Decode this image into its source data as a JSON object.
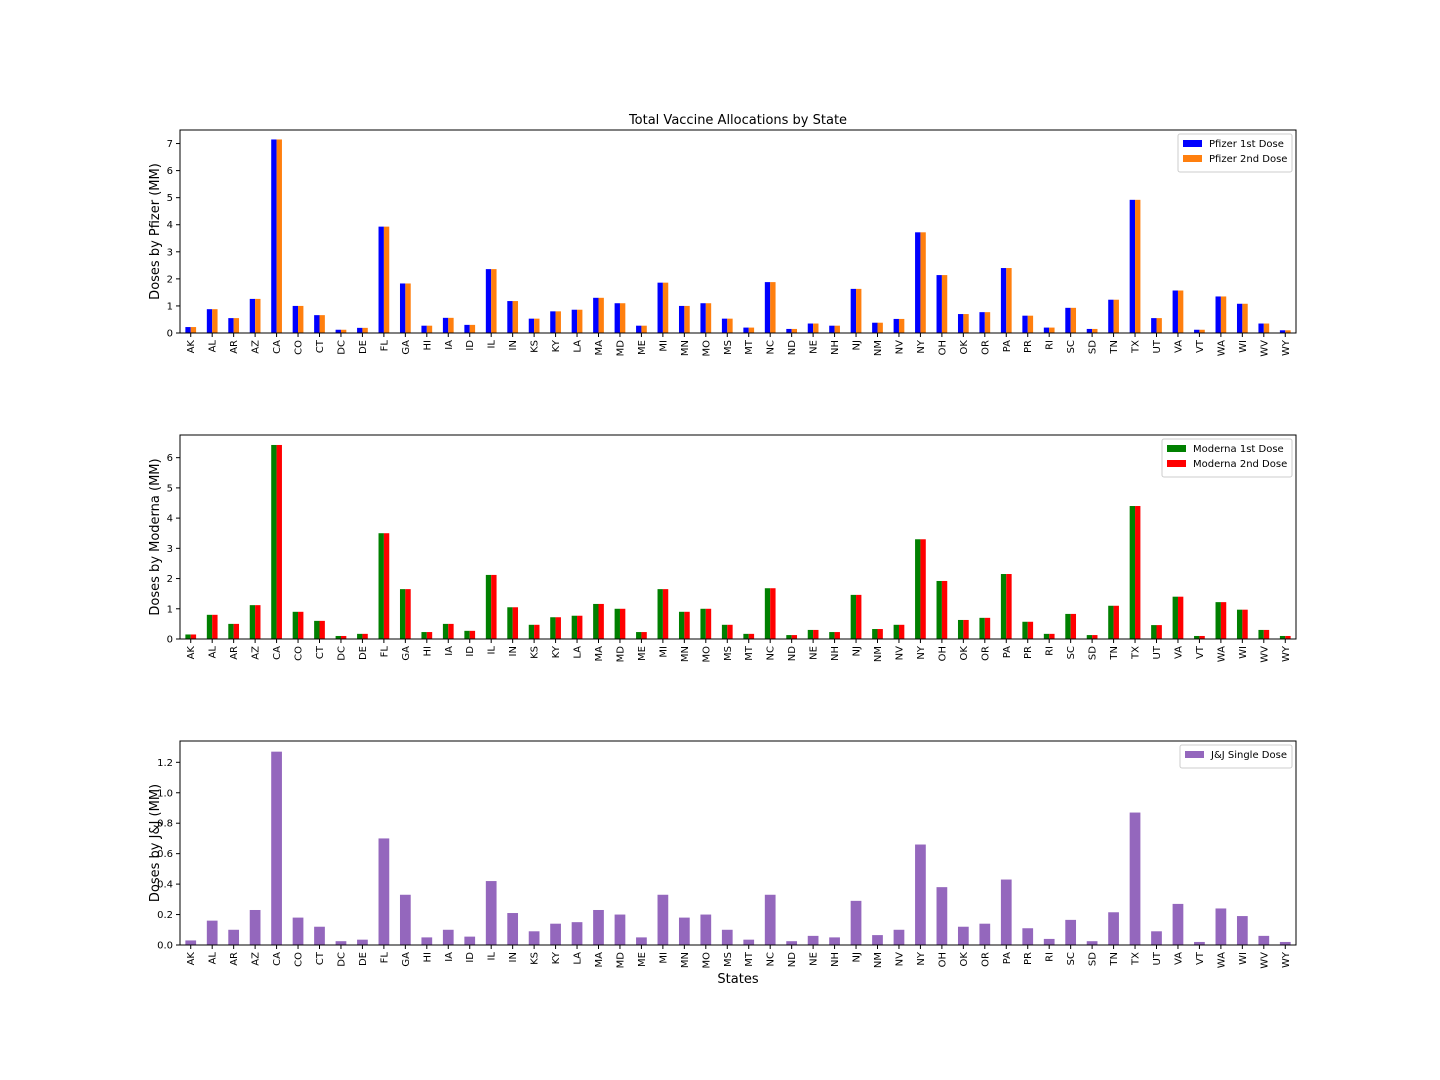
{
  "figure": {
    "title": "Total Vaccine Allocations by State",
    "xlabel": "States"
  },
  "chart_data": [
    {
      "type": "bar",
      "title": "Total Vaccine Allocations by State",
      "xlabel": "",
      "ylabel": "Doses by Pfizer (MM)",
      "ylim": [
        0,
        7.5
      ],
      "yticks": [
        0,
        1,
        2,
        3,
        4,
        5,
        6,
        7
      ],
      "ytick_labels": [
        "0",
        "1",
        "2",
        "3",
        "4",
        "5",
        "6",
        "7"
      ],
      "legend_position": "upper right",
      "categories": [
        "AK",
        "AL",
        "AR",
        "AZ",
        "CA",
        "CO",
        "CT",
        "DC",
        "DE",
        "FL",
        "GA",
        "HI",
        "IA",
        "ID",
        "IL",
        "IN",
        "KS",
        "KY",
        "LA",
        "MA",
        "MD",
        "ME",
        "MI",
        "MN",
        "MO",
        "MS",
        "MT",
        "NC",
        "ND",
        "NE",
        "NH",
        "NJ",
        "NM",
        "NV",
        "NY",
        "OH",
        "OK",
        "OR",
        "PA",
        "PR",
        "RI",
        "SC",
        "SD",
        "TN",
        "TX",
        "UT",
        "VA",
        "VT",
        "WA",
        "WI",
        "WV",
        "WY"
      ],
      "series": [
        {
          "name": "Pfizer 1st Dose",
          "color": "#0000ff",
          "values": [
            0.22,
            0.88,
            0.55,
            1.26,
            7.15,
            1.0,
            0.66,
            0.12,
            0.19,
            3.93,
            1.83,
            0.27,
            0.56,
            0.3,
            2.36,
            1.18,
            0.53,
            0.8,
            0.86,
            1.3,
            1.1,
            0.27,
            1.86,
            1.0,
            1.1,
            0.53,
            0.2,
            1.88,
            0.15,
            0.35,
            0.27,
            1.63,
            0.38,
            0.52,
            3.72,
            2.14,
            0.7,
            0.77,
            2.4,
            0.64,
            0.2,
            0.93,
            0.15,
            1.23,
            4.92,
            0.55,
            1.57,
            0.12,
            1.35,
            1.08,
            0.35,
            0.1
          ]
        },
        {
          "name": "Pfizer 2nd Dose",
          "color": "#ff7f0e",
          "values": [
            0.22,
            0.88,
            0.55,
            1.26,
            7.15,
            1.0,
            0.66,
            0.12,
            0.19,
            3.93,
            1.83,
            0.27,
            0.56,
            0.3,
            2.36,
            1.18,
            0.53,
            0.8,
            0.86,
            1.3,
            1.1,
            0.27,
            1.86,
            1.0,
            1.1,
            0.53,
            0.2,
            1.88,
            0.15,
            0.35,
            0.27,
            1.63,
            0.38,
            0.52,
            3.72,
            2.14,
            0.7,
            0.77,
            2.4,
            0.64,
            0.2,
            0.93,
            0.15,
            1.23,
            4.92,
            0.55,
            1.57,
            0.12,
            1.35,
            1.08,
            0.35,
            0.1
          ]
        }
      ]
    },
    {
      "type": "bar",
      "title": "",
      "xlabel": "",
      "ylabel": "Doses by Moderna (MM)",
      "ylim": [
        0,
        6.75
      ],
      "yticks": [
        0,
        1,
        2,
        3,
        4,
        5,
        6
      ],
      "ytick_labels": [
        "0",
        "1",
        "2",
        "3",
        "4",
        "5",
        "6"
      ],
      "legend_position": "upper right",
      "categories": [
        "AK",
        "AL",
        "AR",
        "AZ",
        "CA",
        "CO",
        "CT",
        "DC",
        "DE",
        "FL",
        "GA",
        "HI",
        "IA",
        "ID",
        "IL",
        "IN",
        "KS",
        "KY",
        "LA",
        "MA",
        "MD",
        "ME",
        "MI",
        "MN",
        "MO",
        "MS",
        "MT",
        "NC",
        "ND",
        "NE",
        "NH",
        "NJ",
        "NM",
        "NV",
        "NY",
        "OH",
        "OK",
        "OR",
        "PA",
        "PR",
        "RI",
        "SC",
        "SD",
        "TN",
        "TX",
        "UT",
        "VA",
        "VT",
        "WA",
        "WI",
        "WV",
        "WY"
      ],
      "series": [
        {
          "name": "Moderna 1st Dose",
          "color": "#008000",
          "values": [
            0.15,
            0.8,
            0.5,
            1.12,
            6.42,
            0.9,
            0.6,
            0.1,
            0.17,
            3.5,
            1.65,
            0.23,
            0.5,
            0.27,
            2.12,
            1.05,
            0.47,
            0.72,
            0.77,
            1.16,
            1.0,
            0.23,
            1.65,
            0.9,
            1.0,
            0.47,
            0.17,
            1.68,
            0.13,
            0.3,
            0.23,
            1.46,
            0.33,
            0.47,
            3.3,
            1.92,
            0.63,
            0.7,
            2.15,
            0.57,
            0.17,
            0.83,
            0.13,
            1.1,
            4.4,
            0.46,
            1.4,
            0.1,
            1.22,
            0.97,
            0.3,
            0.1
          ]
        },
        {
          "name": "Moderna 2nd Dose",
          "color": "#ff0000",
          "values": [
            0.15,
            0.8,
            0.5,
            1.12,
            6.42,
            0.9,
            0.6,
            0.1,
            0.17,
            3.5,
            1.65,
            0.23,
            0.5,
            0.27,
            2.12,
            1.05,
            0.47,
            0.72,
            0.77,
            1.16,
            1.0,
            0.23,
            1.65,
            0.9,
            1.0,
            0.47,
            0.17,
            1.68,
            0.13,
            0.3,
            0.23,
            1.46,
            0.33,
            0.47,
            3.3,
            1.92,
            0.63,
            0.7,
            2.15,
            0.57,
            0.17,
            0.83,
            0.13,
            1.1,
            4.4,
            0.46,
            1.4,
            0.1,
            1.22,
            0.97,
            0.3,
            0.1
          ]
        }
      ]
    },
    {
      "type": "bar",
      "title": "",
      "xlabel": "States",
      "ylabel": "Doses by J&J (MM)",
      "ylim": [
        0,
        1.34
      ],
      "yticks": [
        0,
        0.2,
        0.4,
        0.6,
        0.8,
        1.0,
        1.2
      ],
      "ytick_labels": [
        "0.0",
        "0.2",
        "0.4",
        "0.6",
        "0.8",
        "1.0",
        "1.2"
      ],
      "legend_position": "upper right",
      "categories": [
        "AK",
        "AL",
        "AR",
        "AZ",
        "CA",
        "CO",
        "CT",
        "DC",
        "DE",
        "FL",
        "GA",
        "HI",
        "IA",
        "ID",
        "IL",
        "IN",
        "KS",
        "KY",
        "LA",
        "MA",
        "MD",
        "ME",
        "MI",
        "MN",
        "MO",
        "MS",
        "MT",
        "NC",
        "ND",
        "NE",
        "NH",
        "NJ",
        "NM",
        "NV",
        "NY",
        "OH",
        "OK",
        "OR",
        "PA",
        "PR",
        "RI",
        "SC",
        "SD",
        "TN",
        "TX",
        "UT",
        "VA",
        "VT",
        "WA",
        "WI",
        "WV",
        "WY"
      ],
      "series": [
        {
          "name": "J&J Single Dose",
          "color": "#9467bd",
          "values": [
            0.03,
            0.16,
            0.1,
            0.23,
            1.27,
            0.18,
            0.12,
            0.025,
            0.035,
            0.7,
            0.33,
            0.05,
            0.1,
            0.055,
            0.42,
            0.21,
            0.09,
            0.14,
            0.15,
            0.23,
            0.2,
            0.05,
            0.33,
            0.18,
            0.2,
            0.1,
            0.035,
            0.33,
            0.025,
            0.06,
            0.05,
            0.29,
            0.065,
            0.1,
            0.66,
            0.38,
            0.12,
            0.14,
            0.43,
            0.11,
            0.04,
            0.165,
            0.025,
            0.215,
            0.87,
            0.09,
            0.27,
            0.02,
            0.24,
            0.19,
            0.06,
            0.02
          ]
        }
      ]
    }
  ]
}
